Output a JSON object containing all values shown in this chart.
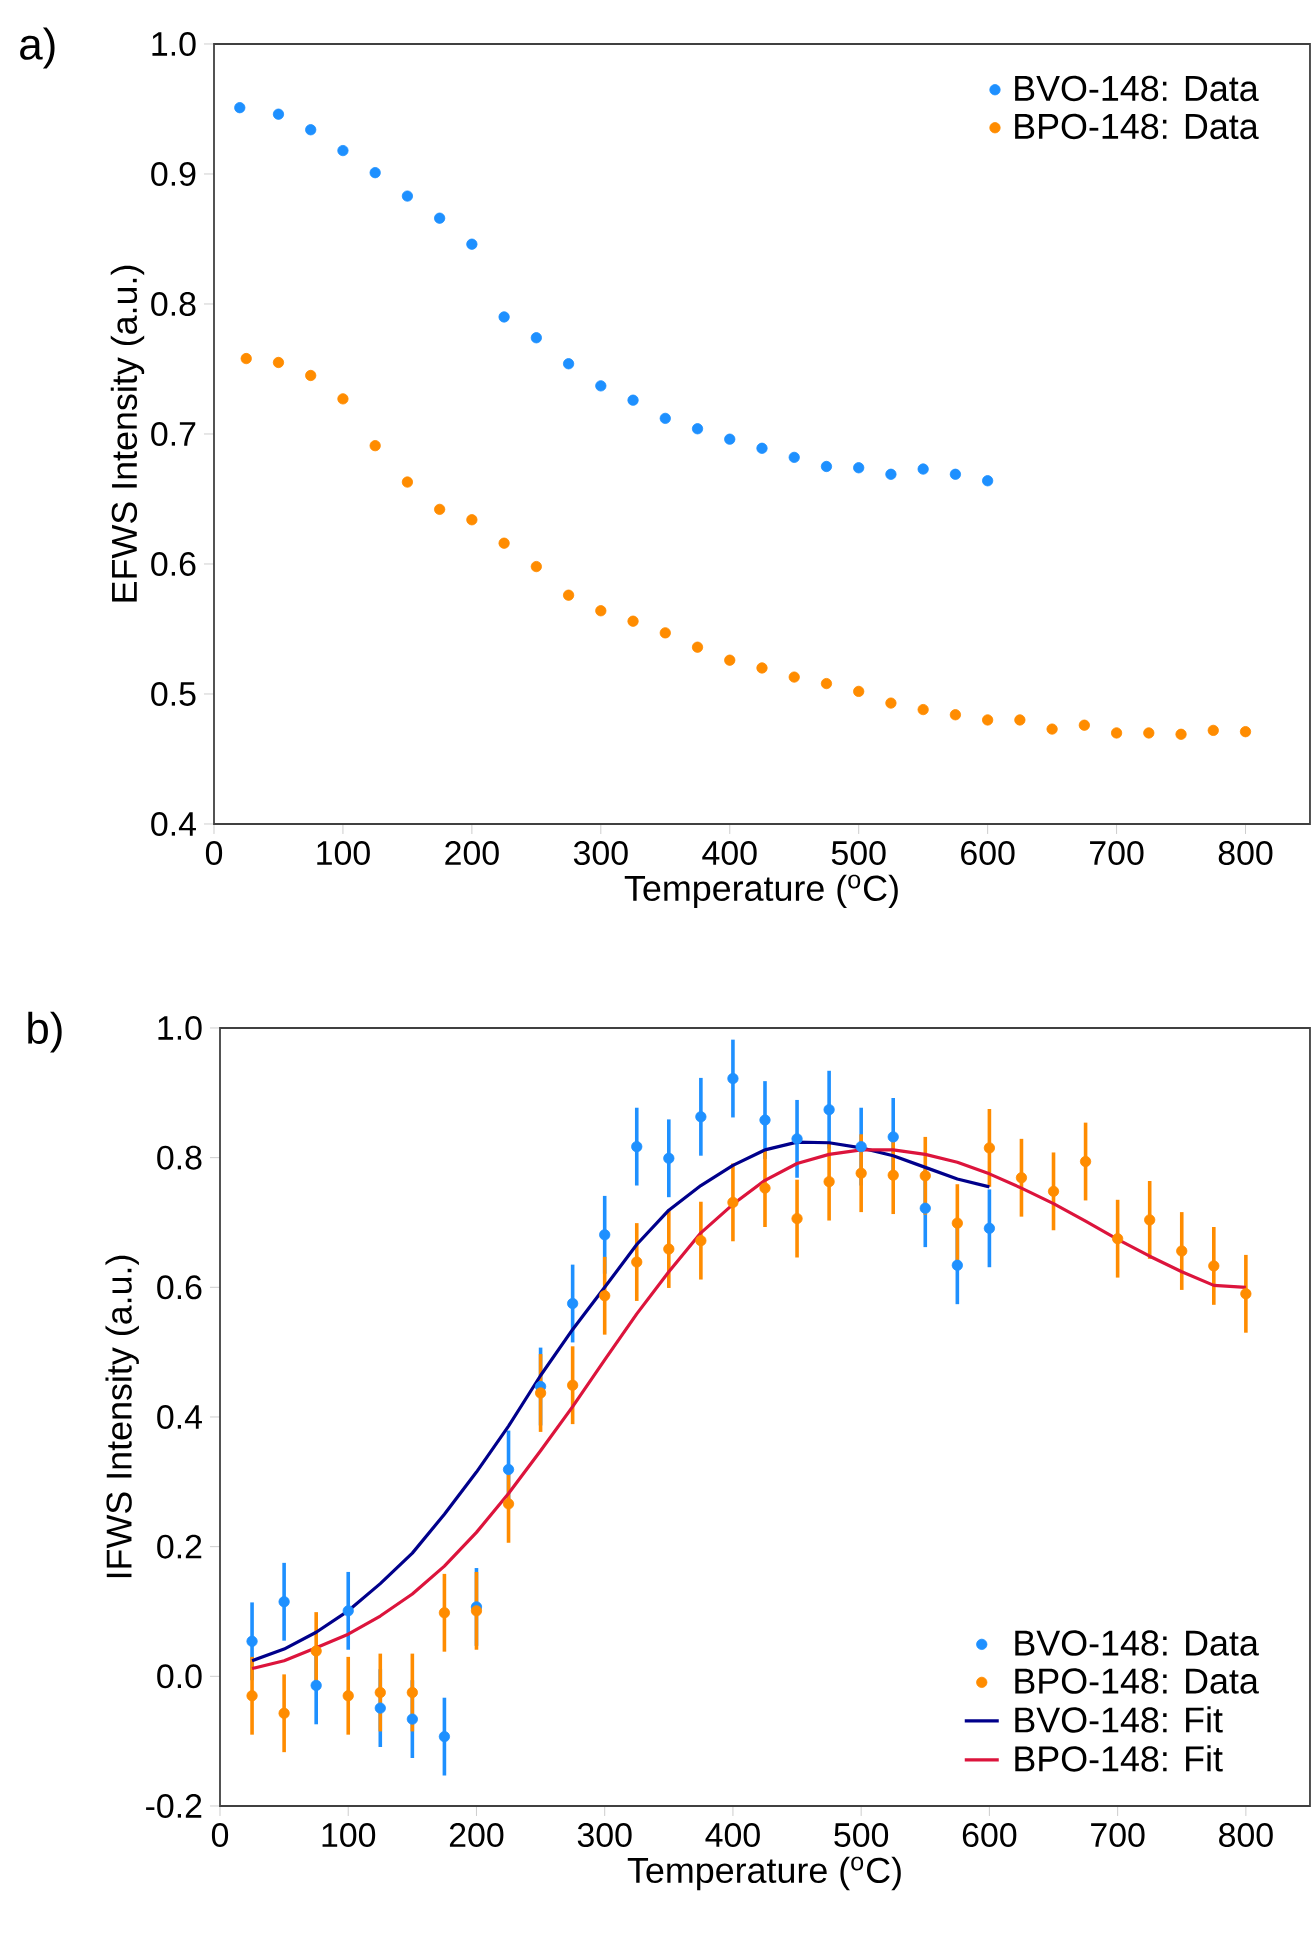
{
  "chart_data": [
    {
      "type": "scatter",
      "title": "a)",
      "xlabel": "Temperature ($^{o}$C)",
      "ylabel": "EFWS Intensity (a.u.)",
      "xlim": [
        0,
        850
      ],
      "ylim": [
        0.4,
        1.0
      ],
      "xticks": [
        0,
        100,
        200,
        300,
        400,
        500,
        600,
        700,
        800
      ],
      "yticks": [
        {
          "value": 0.4,
          "label": "0.4"
        },
        {
          "value": 0.5,
          "label": "0.5"
        },
        {
          "value": 0.6,
          "label": "0.6"
        },
        {
          "value": 0.7,
          "label": "0.7"
        },
        {
          "value": 0.8,
          "label": "0.8"
        },
        {
          "value": 0.9,
          "label": "0.9"
        },
        {
          "value": 1.0,
          "label": "1.0"
        }
      ],
      "legend": "top right",
      "series": [
        {
          "name": "BVO-148: Data",
          "marker": "circle",
          "color": "#1e90ff",
          "x": [
            20,
            50,
            75,
            100,
            125,
            150,
            175,
            200,
            225,
            250,
            275,
            300,
            325,
            350,
            375,
            400,
            425,
            450,
            475,
            500,
            525,
            550,
            575,
            600
          ],
          "values": [
            0.951,
            0.946,
            0.934,
            0.918,
            0.901,
            0.883,
            0.866,
            0.846,
            0.79,
            0.774,
            0.754,
            0.737,
            0.726,
            0.712,
            0.704,
            0.696,
            0.689,
            0.682,
            0.675,
            0.674,
            0.669,
            0.673,
            0.669,
            0.664
          ]
        },
        {
          "name": "BPO-148: Data",
          "marker": "circle",
          "color": "#ff8c00",
          "x": [
            25,
            50,
            75,
            100,
            125,
            150,
            175,
            200,
            225,
            250,
            275,
            300,
            325,
            350,
            375,
            400,
            425,
            450,
            475,
            500,
            525,
            550,
            575,
            600,
            625,
            650,
            675,
            700,
            725,
            750,
            775,
            800
          ],
          "values": [
            0.758,
            0.755,
            0.745,
            0.727,
            0.691,
            0.663,
            0.642,
            0.634,
            0.616,
            0.598,
            0.576,
            0.564,
            0.556,
            0.547,
            0.536,
            0.526,
            0.52,
            0.513,
            0.508,
            0.502,
            0.493,
            0.488,
            0.484,
            0.48,
            0.48,
            0.473,
            0.476,
            0.47,
            0.47,
            0.469,
            0.472,
            0.471
          ]
        }
      ]
    },
    {
      "type": "scatter",
      "title": "b)",
      "xlabel": "Temperature ($^{o}$C)",
      "ylabel": "IFWS Intensity (a.u.)",
      "xlim": [
        0,
        850
      ],
      "ylim": [
        -0.2,
        1.0
      ],
      "xticks": [
        0,
        100,
        200,
        300,
        400,
        500,
        600,
        700,
        800
      ],
      "yticks": [
        {
          "value": -0.2,
          "label": "-0.2"
        },
        {
          "value": 0.0,
          "label": "0.0"
        },
        {
          "value": 0.2,
          "label": "0.2"
        },
        {
          "value": 0.4,
          "label": "0.4"
        },
        {
          "value": 0.6,
          "label": "0.6"
        },
        {
          "value": 0.8,
          "label": "0.8"
        },
        {
          "value": 1.0,
          "label": "1.0"
        }
      ],
      "legend": "bottom right",
      "series": [
        {
          "name": "BVO-148: Data",
          "marker": "circle",
          "color": "#1e90ff",
          "x": [
            25,
            50,
            75,
            100,
            125,
            150,
            175,
            200,
            225,
            250,
            275,
            300,
            325,
            350,
            375,
            400,
            425,
            450,
            475,
            500,
            525,
            550,
            575,
            600
          ],
          "values": [
            0.054,
            0.115,
            -0.014,
            0.101,
            -0.049,
            -0.066,
            -0.093,
            0.107,
            0.319,
            0.447,
            0.575,
            0.681,
            0.817,
            0.799,
            0.863,
            0.922,
            0.858,
            0.829,
            0.874,
            0.817,
            0.832,
            0.722,
            0.634,
            0.691
          ],
          "errors": [
            0.06,
            0.06,
            0.06,
            0.06,
            0.06,
            0.06,
            0.06,
            0.06,
            0.06,
            0.06,
            0.06,
            0.06,
            0.06,
            0.06,
            0.06,
            0.06,
            0.06,
            0.06,
            0.06,
            0.06,
            0.06,
            0.06,
            0.06,
            0.06
          ]
        },
        {
          "name": "BPO-148: Data",
          "marker": "circle",
          "color": "#ff8c00",
          "x": [
            25,
            50,
            75,
            100,
            125,
            150,
            175,
            200,
            225,
            250,
            275,
            300,
            325,
            350,
            375,
            400,
            425,
            450,
            475,
            500,
            525,
            550,
            575,
            600,
            625,
            650,
            675,
            700,
            725,
            750,
            775,
            800
          ],
          "values": [
            -0.03,
            -0.057,
            0.039,
            -0.03,
            -0.025,
            -0.025,
            0.098,
            0.101,
            0.266,
            0.437,
            0.449,
            0.587,
            0.639,
            0.659,
            0.672,
            0.731,
            0.753,
            0.706,
            0.763,
            0.776,
            0.773,
            0.772,
            0.699,
            0.815,
            0.769,
            0.748,
            0.794,
            0.675,
            0.704,
            0.656,
            0.633,
            0.59
          ],
          "errors": [
            0.06,
            0.06,
            0.06,
            0.06,
            0.06,
            0.06,
            0.06,
            0.06,
            0.06,
            0.06,
            0.06,
            0.06,
            0.06,
            0.06,
            0.06,
            0.06,
            0.06,
            0.06,
            0.06,
            0.06,
            0.06,
            0.06,
            0.06,
            0.06,
            0.06,
            0.06,
            0.06,
            0.06,
            0.06,
            0.06,
            0.06,
            0.06
          ]
        },
        {
          "name": "BVO-148: Fit",
          "type": "line",
          "marker": "none",
          "color": "#00008b",
          "x": [
            25,
            50,
            75,
            100,
            125,
            150,
            175,
            200,
            225,
            250,
            275,
            300,
            325,
            350,
            375,
            400,
            425,
            450,
            475,
            500,
            525,
            550,
            575,
            600
          ],
          "values": [
            0.024,
            0.042,
            0.068,
            0.101,
            0.143,
            0.19,
            0.25,
            0.315,
            0.386,
            0.464,
            0.535,
            0.6,
            0.666,
            0.719,
            0.757,
            0.788,
            0.812,
            0.824,
            0.823,
            0.815,
            0.803,
            0.785,
            0.767,
            0.755
          ]
        },
        {
          "name": "BPO-148: Fit",
          "type": "line",
          "marker": "none",
          "color": "#dc143c",
          "x": [
            25,
            50,
            75,
            100,
            125,
            150,
            175,
            200,
            225,
            250,
            275,
            300,
            325,
            350,
            375,
            400,
            425,
            450,
            475,
            500,
            525,
            550,
            575,
            600,
            625,
            650,
            675,
            700,
            725,
            750,
            775,
            800
          ],
          "values": [
            0.012,
            0.024,
            0.044,
            0.065,
            0.093,
            0.127,
            0.17,
            0.222,
            0.282,
            0.348,
            0.416,
            0.488,
            0.559,
            0.624,
            0.684,
            0.728,
            0.765,
            0.791,
            0.805,
            0.812,
            0.812,
            0.805,
            0.793,
            0.775,
            0.753,
            0.729,
            0.702,
            0.674,
            0.648,
            0.624,
            0.603,
            0.6
          ]
        }
      ]
    }
  ]
}
